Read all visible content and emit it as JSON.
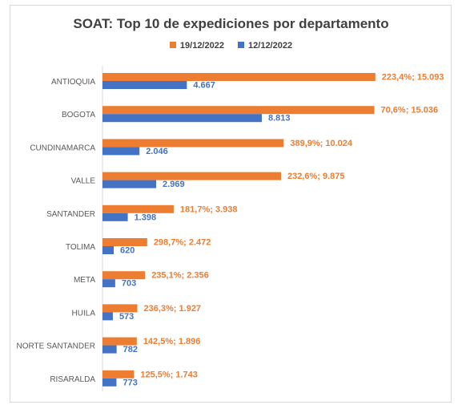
{
  "colors": {
    "series_current": "#ed7d31",
    "series_previous": "#4472c4",
    "axis": "#d9d9d9",
    "category_text": "#595959"
  },
  "chart_data": {
    "type": "bar",
    "orientation": "horizontal",
    "title": "SOAT: Top 10 de expediciones por departamento",
    "legend_position": "top",
    "grid": false,
    "xlim": [
      0,
      15500
    ],
    "categories": [
      "ANTIOQUIA",
      "BOGOTA",
      "CUNDINAMARCA",
      "VALLE",
      "SANTANDER",
      "TOLIMA",
      "META",
      "HUILA",
      "NORTE SANTANDER",
      "RISARALDA"
    ],
    "series": [
      {
        "name": "19/12/2022",
        "values": [
          15093,
          15036,
          10024,
          9875,
          3938,
          2472,
          2356,
          1927,
          1896,
          1743
        ],
        "labels": [
          "223,4%; 15.093",
          "70,6%; 15.036",
          "389,9%; 10.024",
          "232,6%; 9.875",
          "181,7%; 3.938",
          "298,7%; 2.472",
          "235,1%; 2.356",
          "236,3%; 1.927",
          "142,5%; 1.896",
          "125,5%; 1.743"
        ]
      },
      {
        "name": "12/12/2022",
        "values": [
          4667,
          8813,
          2046,
          2969,
          1398,
          620,
          703,
          573,
          782,
          773
        ],
        "labels": [
          "4.667",
          "8.813",
          "2.046",
          "2.969",
          "1.398",
          "620",
          "703",
          "573",
          "782",
          "773"
        ]
      }
    ]
  }
}
